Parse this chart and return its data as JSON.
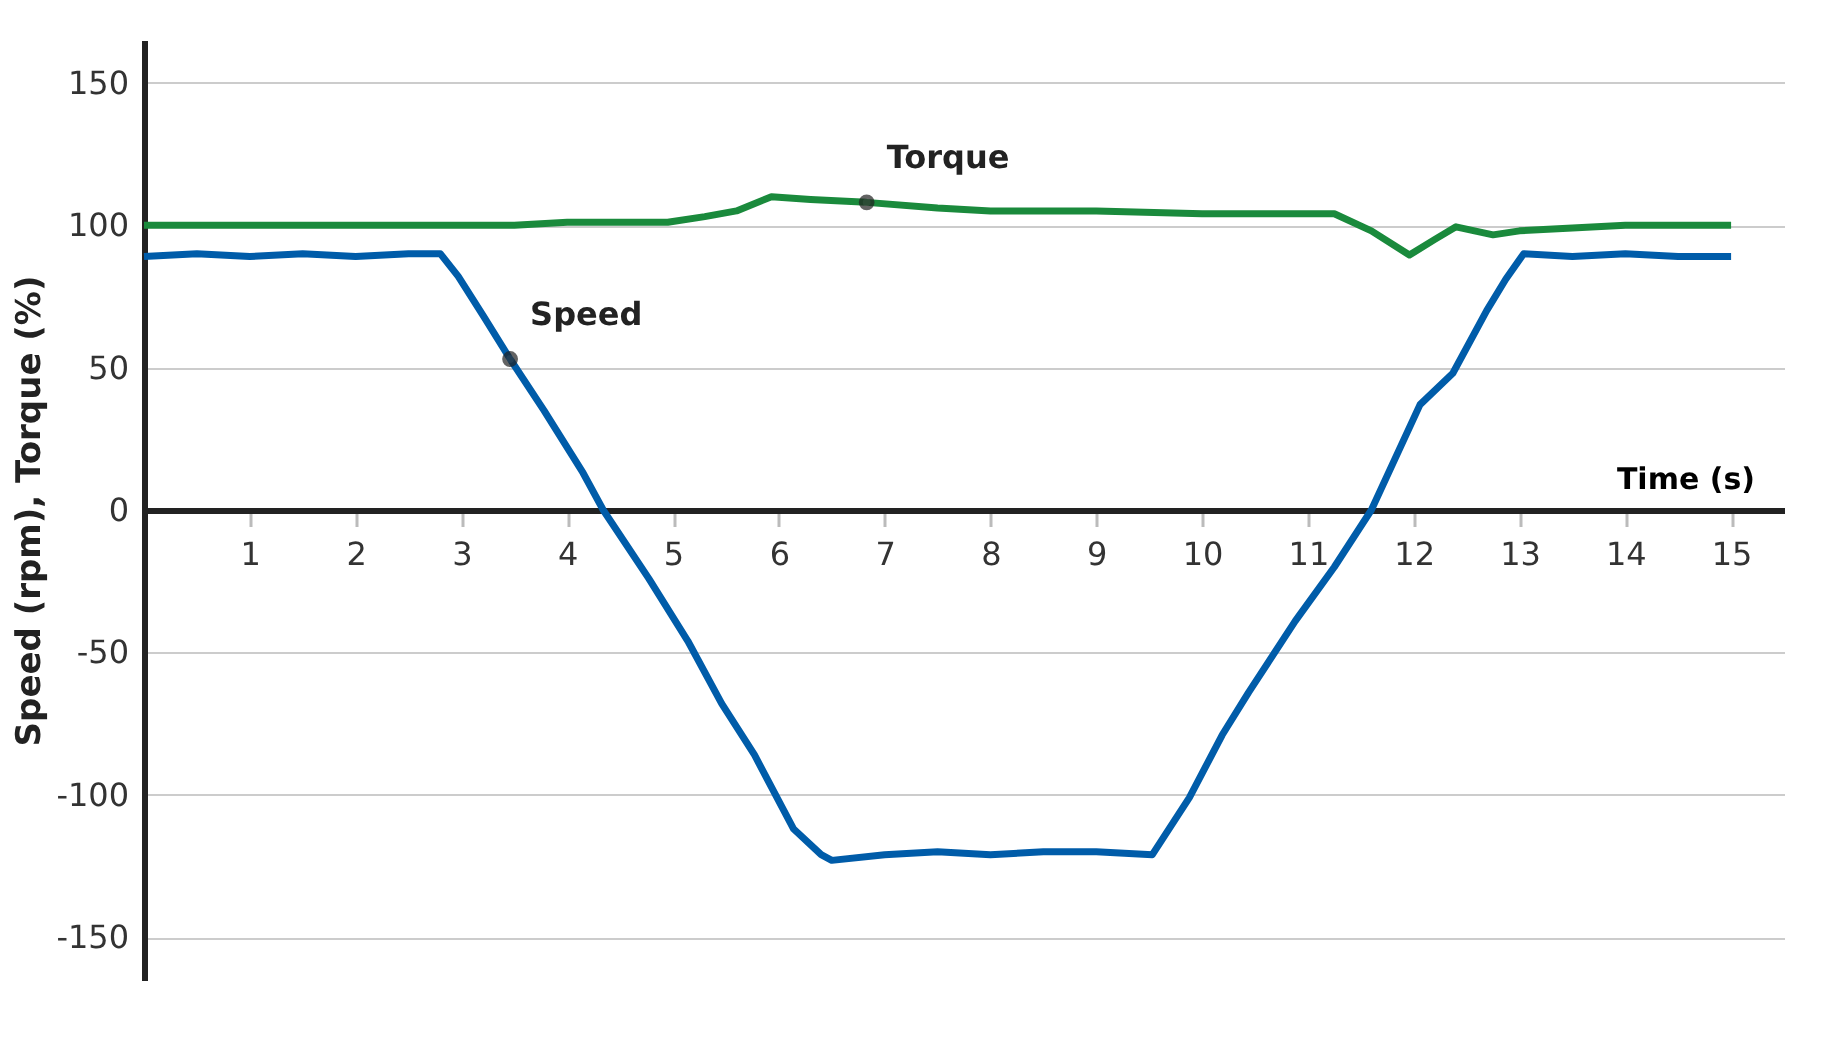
{
  "chart_data": {
    "type": "line",
    "xlabel": "Time (s)",
    "ylabel": "Speed (rpm), Torque (%)",
    "xlim": [
      0,
      15.5
    ],
    "xticks": [
      1,
      2,
      3,
      4,
      5,
      6,
      7,
      8,
      9,
      10,
      11,
      12,
      13,
      14,
      15
    ],
    "ylim": [
      -165,
      165
    ],
    "yticks": [
      -150,
      -100,
      -50,
      0,
      50,
      100,
      150
    ],
    "grid": "y",
    "legend": false,
    "marker": "none",
    "line_style": "solid",
    "series": [
      {
        "color": "#1a8a3c",
        "x": [
          0,
          0.5,
          1,
          1.5,
          2,
          2.5,
          3,
          3.5,
          4,
          4.5,
          4.95,
          5.3,
          5.6,
          5.93,
          6.3,
          6.83,
          7.5,
          8,
          9,
          10,
          11,
          11.25,
          11.6,
          11.96,
          12.2,
          12.4,
          12.75,
          13,
          13.5,
          14,
          14.5,
          15
        ],
        "values": [
          100,
          100,
          100,
          100,
          100,
          100,
          100,
          100,
          101,
          101,
          101,
          103,
          105,
          110,
          109,
          108,
          106,
          105,
          105,
          104,
          104,
          104,
          98,
          89.5,
          95,
          99.4,
          96.6,
          98,
          99,
          100,
          100,
          100
        ]
      },
      {
        "color": "#005ca9",
        "x": [
          0,
          0.5,
          1,
          1.5,
          2,
          2.5,
          2.8,
          2.97,
          3.21,
          3.46,
          3.78,
          4.15,
          4.34,
          4.77,
          5.14,
          5.46,
          5.77,
          6.14,
          6.4,
          6.5,
          7,
          7.5,
          8,
          8.5,
          9,
          9.53,
          9.88,
          10.19,
          10.44,
          10.88,
          11.25,
          11.6,
          12.06,
          12.37,
          12.69,
          12.87,
          13.04,
          13.5,
          14,
          14.5,
          15
        ],
        "values": [
          89,
          90,
          89,
          90,
          89,
          90,
          90,
          82,
          68,
          53,
          35,
          13,
          0,
          -24,
          -46,
          -68,
          -86,
          -112,
          -121,
          -123,
          -121,
          -120,
          -121,
          -120,
          -120,
          -121,
          -101,
          -79,
          -64,
          -39,
          -20,
          0,
          37,
          48,
          70,
          81,
          90,
          89,
          90,
          89,
          89
        ]
      }
    ],
    "annotations": [
      {
        "text": "Torque",
        "x": 6.83,
        "y": 108
      },
      {
        "text": "Speed",
        "x": 3.46,
        "y": 53
      }
    ]
  }
}
